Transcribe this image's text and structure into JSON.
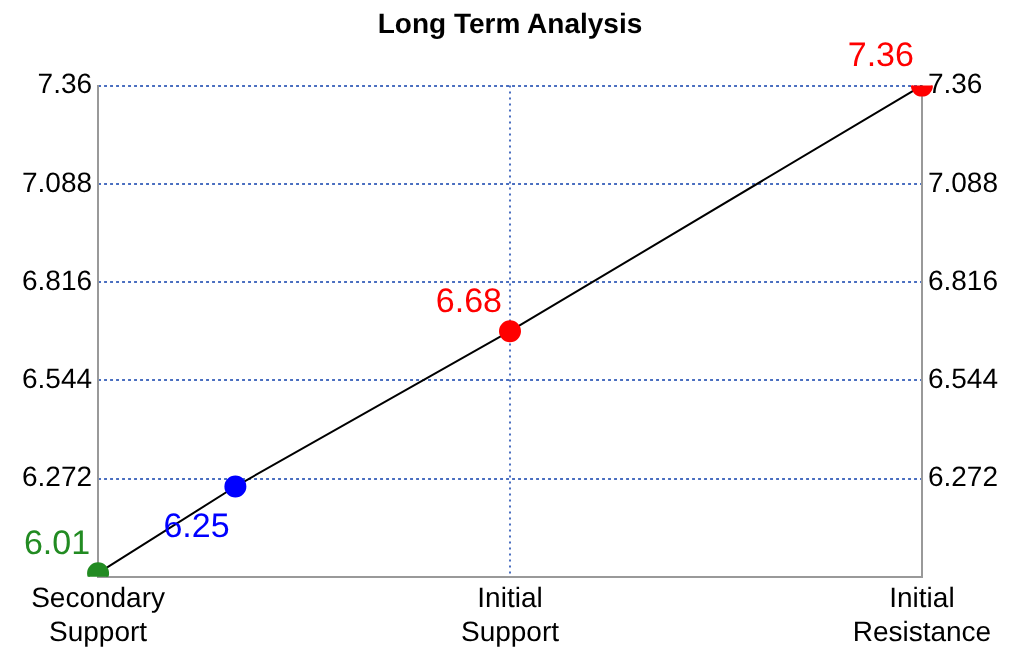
{
  "chart_data": {
    "type": "line",
    "title": "Long Term Analysis",
    "categories": [
      "Secondary Support",
      null,
      null,
      "Initial Support",
      null,
      null,
      "Initial Resistance"
    ],
    "values": [
      6.01,
      6.25,
      null,
      6.68,
      null,
      null,
      7.36
    ],
    "color": "#000000",
    "colors": [
      "#228b22",
      "#0000ff",
      null,
      "#ff0000",
      null,
      null,
      "#ff0000"
    ],
    "marker": "circle",
    "line_style": "solid",
    "data_labels": true,
    "grid": true,
    "legend": false,
    "ylim": [
      6.0,
      7.36
    ],
    "yticks": [
      6.272,
      6.544,
      6.816,
      7.088,
      7.36
    ],
    "y2lim": [
      6.0,
      7.36
    ],
    "y2ticks": [
      6.272,
      6.544,
      6.816,
      7.088,
      7.36
    ]
  }
}
